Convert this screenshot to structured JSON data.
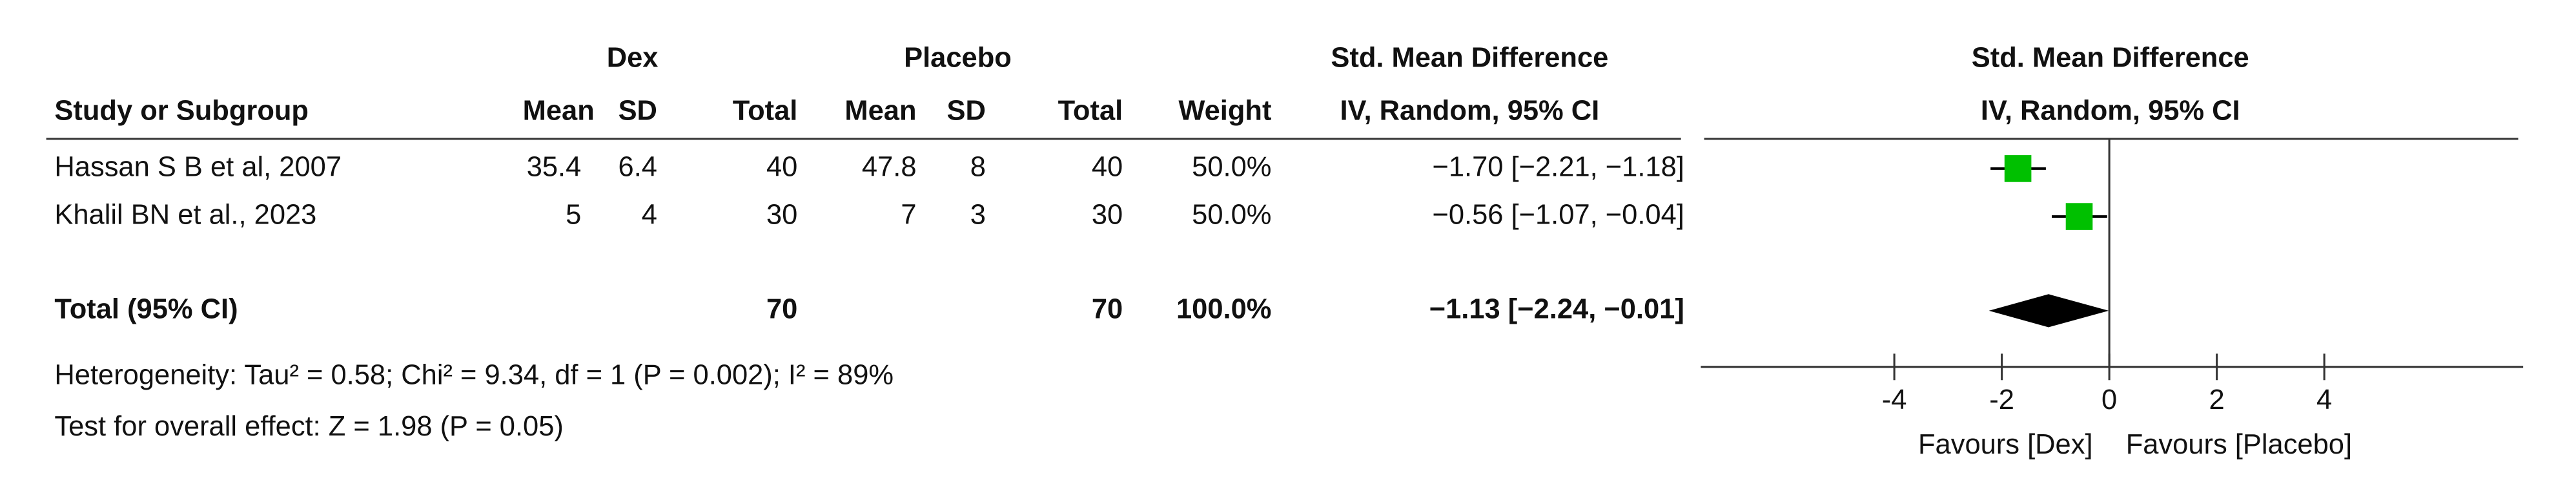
{
  "chart_data": {
    "type": "forest",
    "group_headers": [
      "Dex",
      "Placebo",
      "Std. Mean Difference"
    ],
    "plot_header": "Std. Mean Difference",
    "plot_subheader": "IV, Random, 95% CI",
    "columns": [
      "Study or Subgroup",
      "Mean",
      "SD",
      "Total",
      "Mean",
      "SD",
      "Total",
      "Weight",
      "IV, Random, 95% CI"
    ],
    "studies": [
      {
        "name": "Hassan S B et al, 2007",
        "dex_mean": 35.4,
        "dex_sd": 6.4,
        "dex_total": 40,
        "pl_mean": 47.8,
        "pl_sd": 8,
        "pl_total": 40,
        "weight": 50.0,
        "weight_label": "50.0%",
        "estimate": -1.7,
        "lower": -2.21,
        "upper": -1.18,
        "ci_label": "−1.70 [−2.21, −1.18]",
        "color": "#00c000"
      },
      {
        "name": "Khalil BN et al., 2023",
        "dex_mean": 5,
        "dex_sd": 4,
        "dex_total": 30,
        "pl_mean": 7,
        "pl_sd": 3,
        "pl_total": 30,
        "weight": 50.0,
        "weight_label": "50.0%",
        "estimate": -0.56,
        "lower": -1.07,
        "upper": -0.04,
        "ci_label": "−0.56 [−1.07, −0.04]",
        "color": "#00c000"
      }
    ],
    "total": {
      "name": "Total (95% CI)",
      "dex_total": 70,
      "pl_total": 70,
      "weight": 100.0,
      "weight_label": "100.0%",
      "estimate": -1.13,
      "lower": -2.24,
      "upper": -0.01,
      "ci_label": "−1.13 [−2.24, −0.01]",
      "color": "#000000"
    },
    "heterogeneity": "Heterogeneity: Tau² = 0.58; Chi² = 9.34, df = 1 (P = 0.002); I² = 89%",
    "overall_effect": "Test for overall effect: Z = 1.98 (P = 0.05)",
    "xlim": [
      -7.6,
      7.7
    ],
    "xticks": [
      -4,
      -2,
      0,
      2,
      4
    ],
    "x_left_label": "Favours [Dex]",
    "x_right_label": "Favours [Placebo]"
  }
}
